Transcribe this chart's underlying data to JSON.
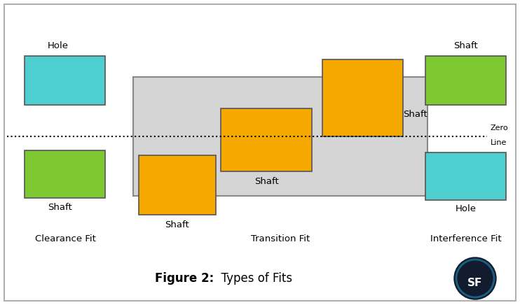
{
  "figsize": [
    7.42,
    4.36
  ],
  "dpi": 100,
  "bg_color": "#ffffff",
  "border_color": "#b0b0b0",
  "cyan_color": "#4ecece",
  "green_color": "#7ec832",
  "orange_color": "#f5a800",
  "gray_color": "#d4d4d4",
  "gray_border": "#888888",
  "dark_border": "#555555",
  "title_bold": "Figure 2:",
  "title_normal": "  Types of Fits",
  "clearance_fit_label": "Clearance Fit",
  "transition_fit_label": "Transition Fit",
  "interference_fit_label": "Interference Fit",
  "hole_label_left": "Hole",
  "shaft_label_left": "Shaft",
  "shaft_label_right": "Shaft",
  "hole_label_right": "Hole",
  "shaft_label_tr1": "Shaft",
  "shaft_label_tr2": "Shaft",
  "shaft_label_tr3": "Shaft",
  "zero_label1": "Zero",
  "zero_label2": "Line",
  "logo_color": "#121c2e",
  "logo_text": "SF",
  "logo_text_color": "#ffffff"
}
